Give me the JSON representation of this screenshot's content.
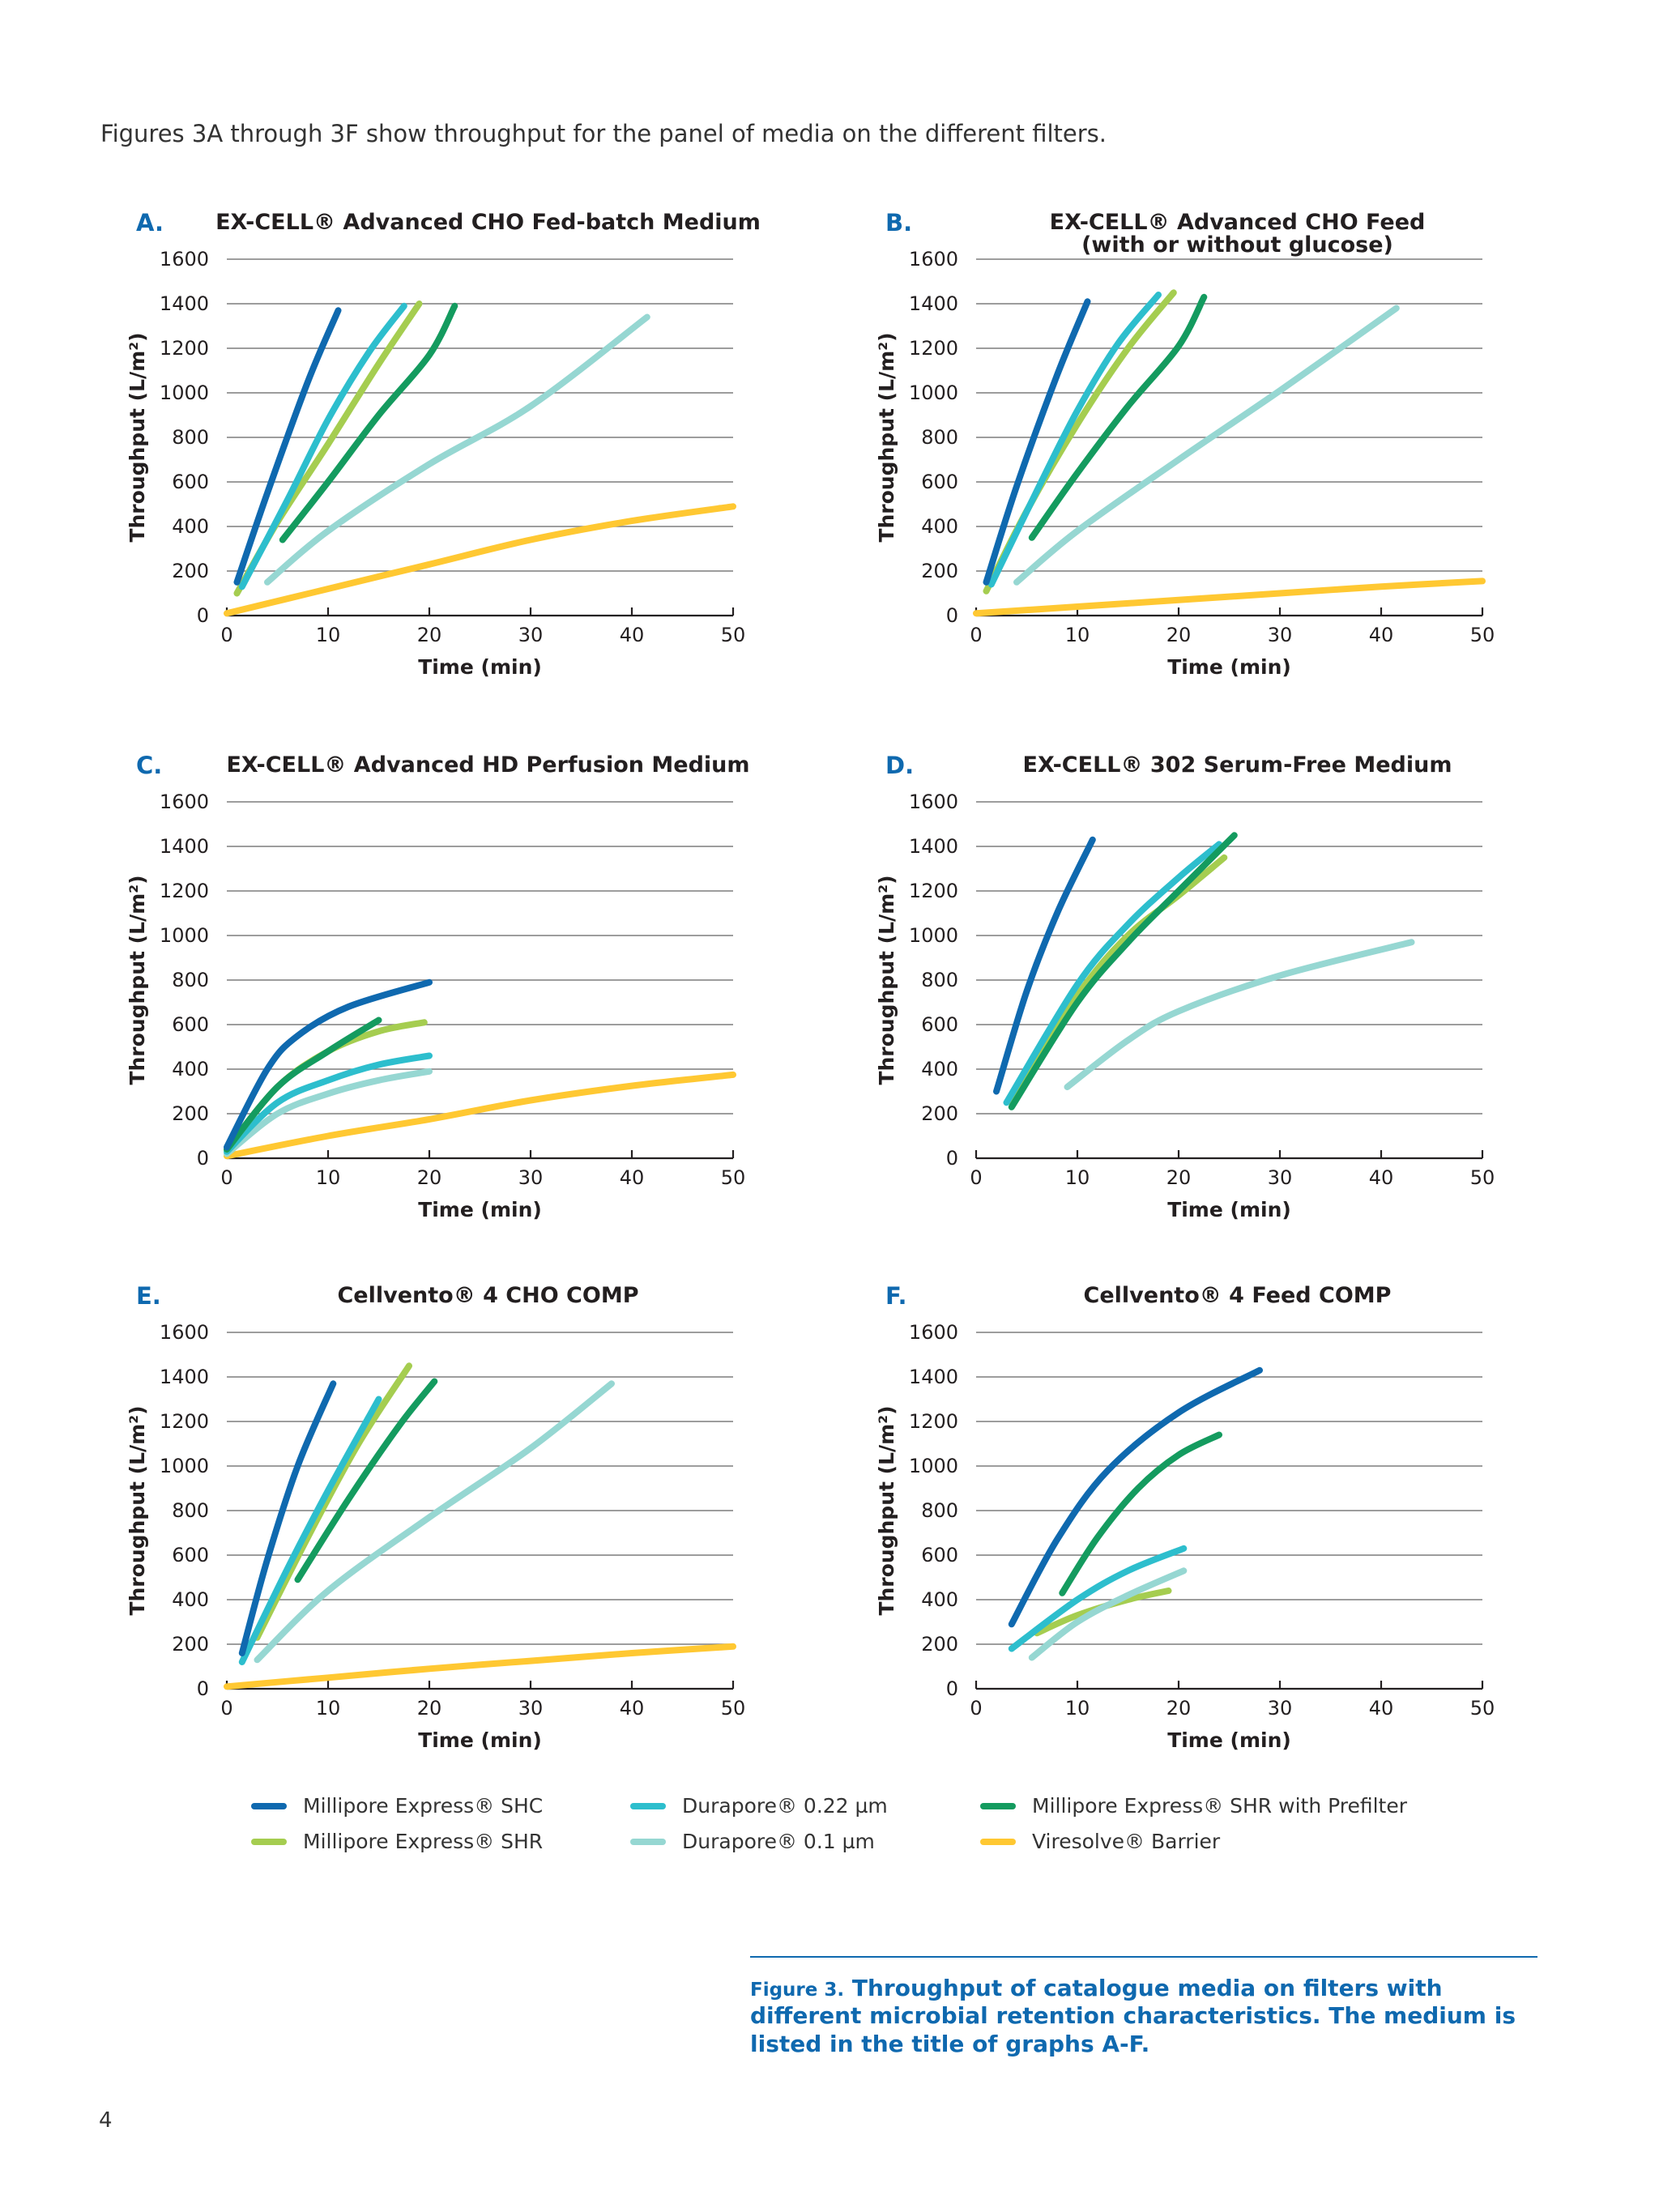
{
  "intro": "Figures 3A through 3F show throughput for the panel of media on the different filters.",
  "colors": {
    "shc": "#0f69af",
    "shr": "#a5cd50",
    "dura022": "#2dbecd",
    "dura01": "#96d7d2",
    "prefilter": "#149b5f",
    "viresolve": "#ffc832"
  },
  "legend": [
    {
      "label": "Millipore Express® SHC",
      "color_key": "shc"
    },
    {
      "label": "Millipore Express® SHR",
      "color_key": "shr"
    },
    {
      "label": "Durapore® 0.22 µm",
      "color_key": "dura022"
    },
    {
      "label": "Durapore® 0.1 µm",
      "color_key": "dura01"
    },
    {
      "label": "Millipore Express® SHR with Prefilter",
      "color_key": "prefilter"
    },
    {
      "label": "Viresolve® Barrier",
      "color_key": "viresolve"
    }
  ],
  "caption": {
    "fig_label": "Figure 3.",
    "text": "Throughput of catalogue media on filters with different microbial retention characteristics. The medium is listed in the title of graphs A-F."
  },
  "page_number": "4",
  "chart_data": [
    {
      "type": "line",
      "letter": "A.",
      "title": [
        "EX-CELL® Advanced CHO Fed-batch Medium"
      ],
      "xlabel": "Time (min)",
      "ylabel": "Throughput (L/m²)",
      "xlim": [
        0,
        50
      ],
      "ylim": [
        0,
        1600
      ],
      "xticks": [
        "0",
        "10",
        "20",
        "30",
        "40",
        "50"
      ],
      "yticks": [
        "0",
        "200",
        "400",
        "600",
        "800",
        "1000",
        "1200",
        "1400",
        "1600"
      ],
      "grid": true,
      "series": [
        {
          "color_key": "viresolve",
          "points": [
            [
              0,
              10
            ],
            [
              10,
              120
            ],
            [
              20,
              230
            ],
            [
              30,
              340
            ],
            [
              40,
              425
            ],
            [
              50,
              490
            ]
          ]
        },
        {
          "color_key": "dura01",
          "points": [
            [
              4,
              150
            ],
            [
              10,
              380
            ],
            [
              20,
              680
            ],
            [
              30,
              940
            ],
            [
              41.5,
              1340
            ]
          ]
        },
        {
          "color_key": "prefilter",
          "points": [
            [
              5.5,
              340
            ],
            [
              10,
              600
            ],
            [
              15,
              900
            ],
            [
              20,
              1170
            ],
            [
              22.5,
              1390
            ]
          ]
        },
        {
          "color_key": "shr",
          "points": [
            [
              1,
              100
            ],
            [
              5,
              420
            ],
            [
              10,
              770
            ],
            [
              15,
              1130
            ],
            [
              19,
              1400
            ]
          ]
        },
        {
          "color_key": "dura022",
          "points": [
            [
              1.5,
              130
            ],
            [
              6,
              520
            ],
            [
              10,
              880
            ],
            [
              14,
              1180
            ],
            [
              17.5,
              1390
            ]
          ]
        },
        {
          "color_key": "shc",
          "points": [
            [
              1,
              150
            ],
            [
              4,
              550
            ],
            [
              8,
              1050
            ],
            [
              11,
              1370
            ]
          ]
        }
      ]
    },
    {
      "type": "line",
      "letter": "B.",
      "title": [
        "EX-CELL® Advanced CHO Feed",
        "(with or without glucose)"
      ],
      "xlabel": "Time (min)",
      "ylabel": "Throughput (L/m²)",
      "xlim": [
        0,
        50
      ],
      "ylim": [
        0,
        1600
      ],
      "xticks": [
        "0",
        "10",
        "20",
        "30",
        "40",
        "50"
      ],
      "yticks": [
        "0",
        "200",
        "400",
        "600",
        "800",
        "1000",
        "1200",
        "1400",
        "1600"
      ],
      "grid": true,
      "series": [
        {
          "color_key": "viresolve",
          "points": [
            [
              0,
              10
            ],
            [
              10,
              40
            ],
            [
              20,
              70
            ],
            [
              30,
              100
            ],
            [
              40,
              130
            ],
            [
              50,
              155
            ]
          ]
        },
        {
          "color_key": "dura01",
          "points": [
            [
              4,
              150
            ],
            [
              10,
              380
            ],
            [
              20,
              700
            ],
            [
              30,
              1010
            ],
            [
              41.5,
              1380
            ]
          ]
        },
        {
          "color_key": "prefilter",
          "points": [
            [
              5.5,
              350
            ],
            [
              10,
              640
            ],
            [
              15,
              940
            ],
            [
              20,
              1210
            ],
            [
              22.5,
              1430
            ]
          ]
        },
        {
          "color_key": "shr",
          "points": [
            [
              1,
              110
            ],
            [
              5,
              470
            ],
            [
              10,
              860
            ],
            [
              15,
              1200
            ],
            [
              19.5,
              1450
            ]
          ]
        },
        {
          "color_key": "dura022",
          "points": [
            [
              1.5,
              140
            ],
            [
              6,
              560
            ],
            [
              10,
              920
            ],
            [
              14,
              1220
            ],
            [
              18,
              1440
            ]
          ]
        },
        {
          "color_key": "shc",
          "points": [
            [
              1,
              150
            ],
            [
              4,
              580
            ],
            [
              8,
              1080
            ],
            [
              11,
              1410
            ]
          ]
        }
      ]
    },
    {
      "type": "line",
      "letter": "C.",
      "title": [
        "EX-CELL® Advanced HD Perfusion Medium"
      ],
      "xlabel": "Time (min)",
      "ylabel": "Throughput (L/m²)",
      "xlim": [
        0,
        50
      ],
      "ylim": [
        0,
        1600
      ],
      "xticks": [
        "0",
        "10",
        "20",
        "30",
        "40",
        "50"
      ],
      "yticks": [
        "0",
        "200",
        "400",
        "600",
        "800",
        "1000",
        "1200",
        "1400",
        "1600"
      ],
      "grid": true,
      "series": [
        {
          "color_key": "viresolve",
          "points": [
            [
              0,
              10
            ],
            [
              10,
              100
            ],
            [
              20,
              175
            ],
            [
              30,
              260
            ],
            [
              40,
              325
            ],
            [
              50,
              375
            ]
          ]
        },
        {
          "color_key": "dura01",
          "points": [
            [
              0,
              20
            ],
            [
              5,
              200
            ],
            [
              10,
              290
            ],
            [
              15,
              350
            ],
            [
              20,
              390
            ]
          ]
        },
        {
          "color_key": "dura022",
          "points": [
            [
              0,
              30
            ],
            [
              5,
              250
            ],
            [
              10,
              350
            ],
            [
              15,
              420
            ],
            [
              20,
              460
            ]
          ]
        },
        {
          "color_key": "shr",
          "points": [
            [
              0,
              40
            ],
            [
              5,
              320
            ],
            [
              10,
              480
            ],
            [
              15,
              570
            ],
            [
              19.5,
              610
            ]
          ]
        },
        {
          "color_key": "prefilter",
          "points": [
            [
              0,
              40
            ],
            [
              5,
              320
            ],
            [
              10,
              480
            ],
            [
              15,
              620
            ]
          ]
        },
        {
          "color_key": "shc",
          "points": [
            [
              0,
              50
            ],
            [
              4,
              400
            ],
            [
              7,
              550
            ],
            [
              12,
              680
            ],
            [
              20,
              790
            ]
          ]
        }
      ]
    },
    {
      "type": "line",
      "letter": "D.",
      "title": [
        "EX-CELL® 302 Serum-Free Medium"
      ],
      "xlabel": "Time (min)",
      "ylabel": "Throughput (L/m²)",
      "xlim": [
        0,
        50
      ],
      "ylim": [
        0,
        1600
      ],
      "xticks": [
        "0",
        "10",
        "20",
        "30",
        "40",
        "50"
      ],
      "yticks": [
        "0",
        "200",
        "400",
        "600",
        "800",
        "1000",
        "1200",
        "1400",
        "1600"
      ],
      "grid": true,
      "series": [
        {
          "color_key": "dura01",
          "points": [
            [
              9,
              320
            ],
            [
              15,
              530
            ],
            [
              20,
              660
            ],
            [
              30,
              820
            ],
            [
              43,
              970
            ]
          ]
        },
        {
          "color_key": "shr",
          "points": [
            [
              3.5,
              250
            ],
            [
              10,
              730
            ],
            [
              15,
              1000
            ],
            [
              20,
              1180
            ],
            [
              24.5,
              1350
            ]
          ]
        },
        {
          "color_key": "dura022",
          "points": [
            [
              3,
              250
            ],
            [
              10,
              780
            ],
            [
              15,
              1050
            ],
            [
              20,
              1260
            ],
            [
              24,
              1410
            ]
          ]
        },
        {
          "color_key": "prefilter",
          "points": [
            [
              3.5,
              230
            ],
            [
              10,
              700
            ],
            [
              15,
              970
            ],
            [
              20,
              1200
            ],
            [
              25.5,
              1450
            ]
          ]
        },
        {
          "color_key": "shc",
          "points": [
            [
              2,
              300
            ],
            [
              5,
              750
            ],
            [
              8,
              1100
            ],
            [
              11.5,
              1430
            ]
          ]
        }
      ]
    },
    {
      "type": "line",
      "letter": "E.",
      "title": [
        "Cellvento® 4 CHO COMP"
      ],
      "xlabel": "Time (min)",
      "ylabel": "Throughput (L/m²)",
      "xlim": [
        0,
        50
      ],
      "ylim": [
        0,
        1600
      ],
      "xticks": [
        "0",
        "10",
        "20",
        "30",
        "40",
        "50"
      ],
      "yticks": [
        "0",
        "200",
        "400",
        "600",
        "800",
        "1000",
        "1200",
        "1400",
        "1600"
      ],
      "grid": true,
      "series": [
        {
          "color_key": "viresolve",
          "points": [
            [
              0,
              10
            ],
            [
              10,
              50
            ],
            [
              20,
              90
            ],
            [
              30,
              125
            ],
            [
              40,
              160
            ],
            [
              50,
              190
            ]
          ]
        },
        {
          "color_key": "dura01",
          "points": [
            [
              3,
              130
            ],
            [
              10,
              440
            ],
            [
              20,
              770
            ],
            [
              30,
              1080
            ],
            [
              38,
              1370
            ]
          ]
        },
        {
          "color_key": "prefilter",
          "points": [
            [
              7,
              490
            ],
            [
              12,
              850
            ],
            [
              17,
              1180
            ],
            [
              20.5,
              1380
            ]
          ]
        },
        {
          "color_key": "shr",
          "points": [
            [
              3,
              230
            ],
            [
              8,
              680
            ],
            [
              13,
              1100
            ],
            [
              18,
              1450
            ]
          ]
        },
        {
          "color_key": "dura022",
          "points": [
            [
              1.5,
              120
            ],
            [
              6,
              540
            ],
            [
              10,
              890
            ],
            [
              15,
              1300
            ]
          ]
        },
        {
          "color_key": "shc",
          "points": [
            [
              1.5,
              160
            ],
            [
              4,
              580
            ],
            [
              7,
              1000
            ],
            [
              10.5,
              1370
            ]
          ]
        }
      ]
    },
    {
      "type": "line",
      "letter": "F.",
      "title": [
        "Cellvento® 4 Feed COMP"
      ],
      "xlabel": "Time (min)",
      "ylabel": "Throughput (L/m²)",
      "xlim": [
        0,
        50
      ],
      "ylim": [
        0,
        1600
      ],
      "xticks": [
        "0",
        "10",
        "20",
        "30",
        "40",
        "50"
      ],
      "yticks": [
        "0",
        "200",
        "400",
        "600",
        "800",
        "1000",
        "1200",
        "1400",
        "1600"
      ],
      "grid": true,
      "series": [
        {
          "color_key": "shr",
          "points": [
            [
              6,
              250
            ],
            [
              10,
              330
            ],
            [
              15,
              400
            ],
            [
              19,
              440
            ]
          ]
        },
        {
          "color_key": "dura01",
          "points": [
            [
              5.5,
              140
            ],
            [
              10,
              300
            ],
            [
              15,
              420
            ],
            [
              20.5,
              530
            ]
          ]
        },
        {
          "color_key": "dura022",
          "points": [
            [
              3.5,
              180
            ],
            [
              10,
              400
            ],
            [
              15,
              530
            ],
            [
              20.5,
              630
            ]
          ]
        },
        {
          "color_key": "prefilter",
          "points": [
            [
              8.5,
              430
            ],
            [
              12,
              680
            ],
            [
              16,
              900
            ],
            [
              20,
              1050
            ],
            [
              24,
              1140
            ]
          ]
        },
        {
          "color_key": "shc",
          "points": [
            [
              3.5,
              290
            ],
            [
              8,
              670
            ],
            [
              13,
              980
            ],
            [
              20,
              1240
            ],
            [
              28,
              1430
            ]
          ]
        }
      ]
    }
  ]
}
